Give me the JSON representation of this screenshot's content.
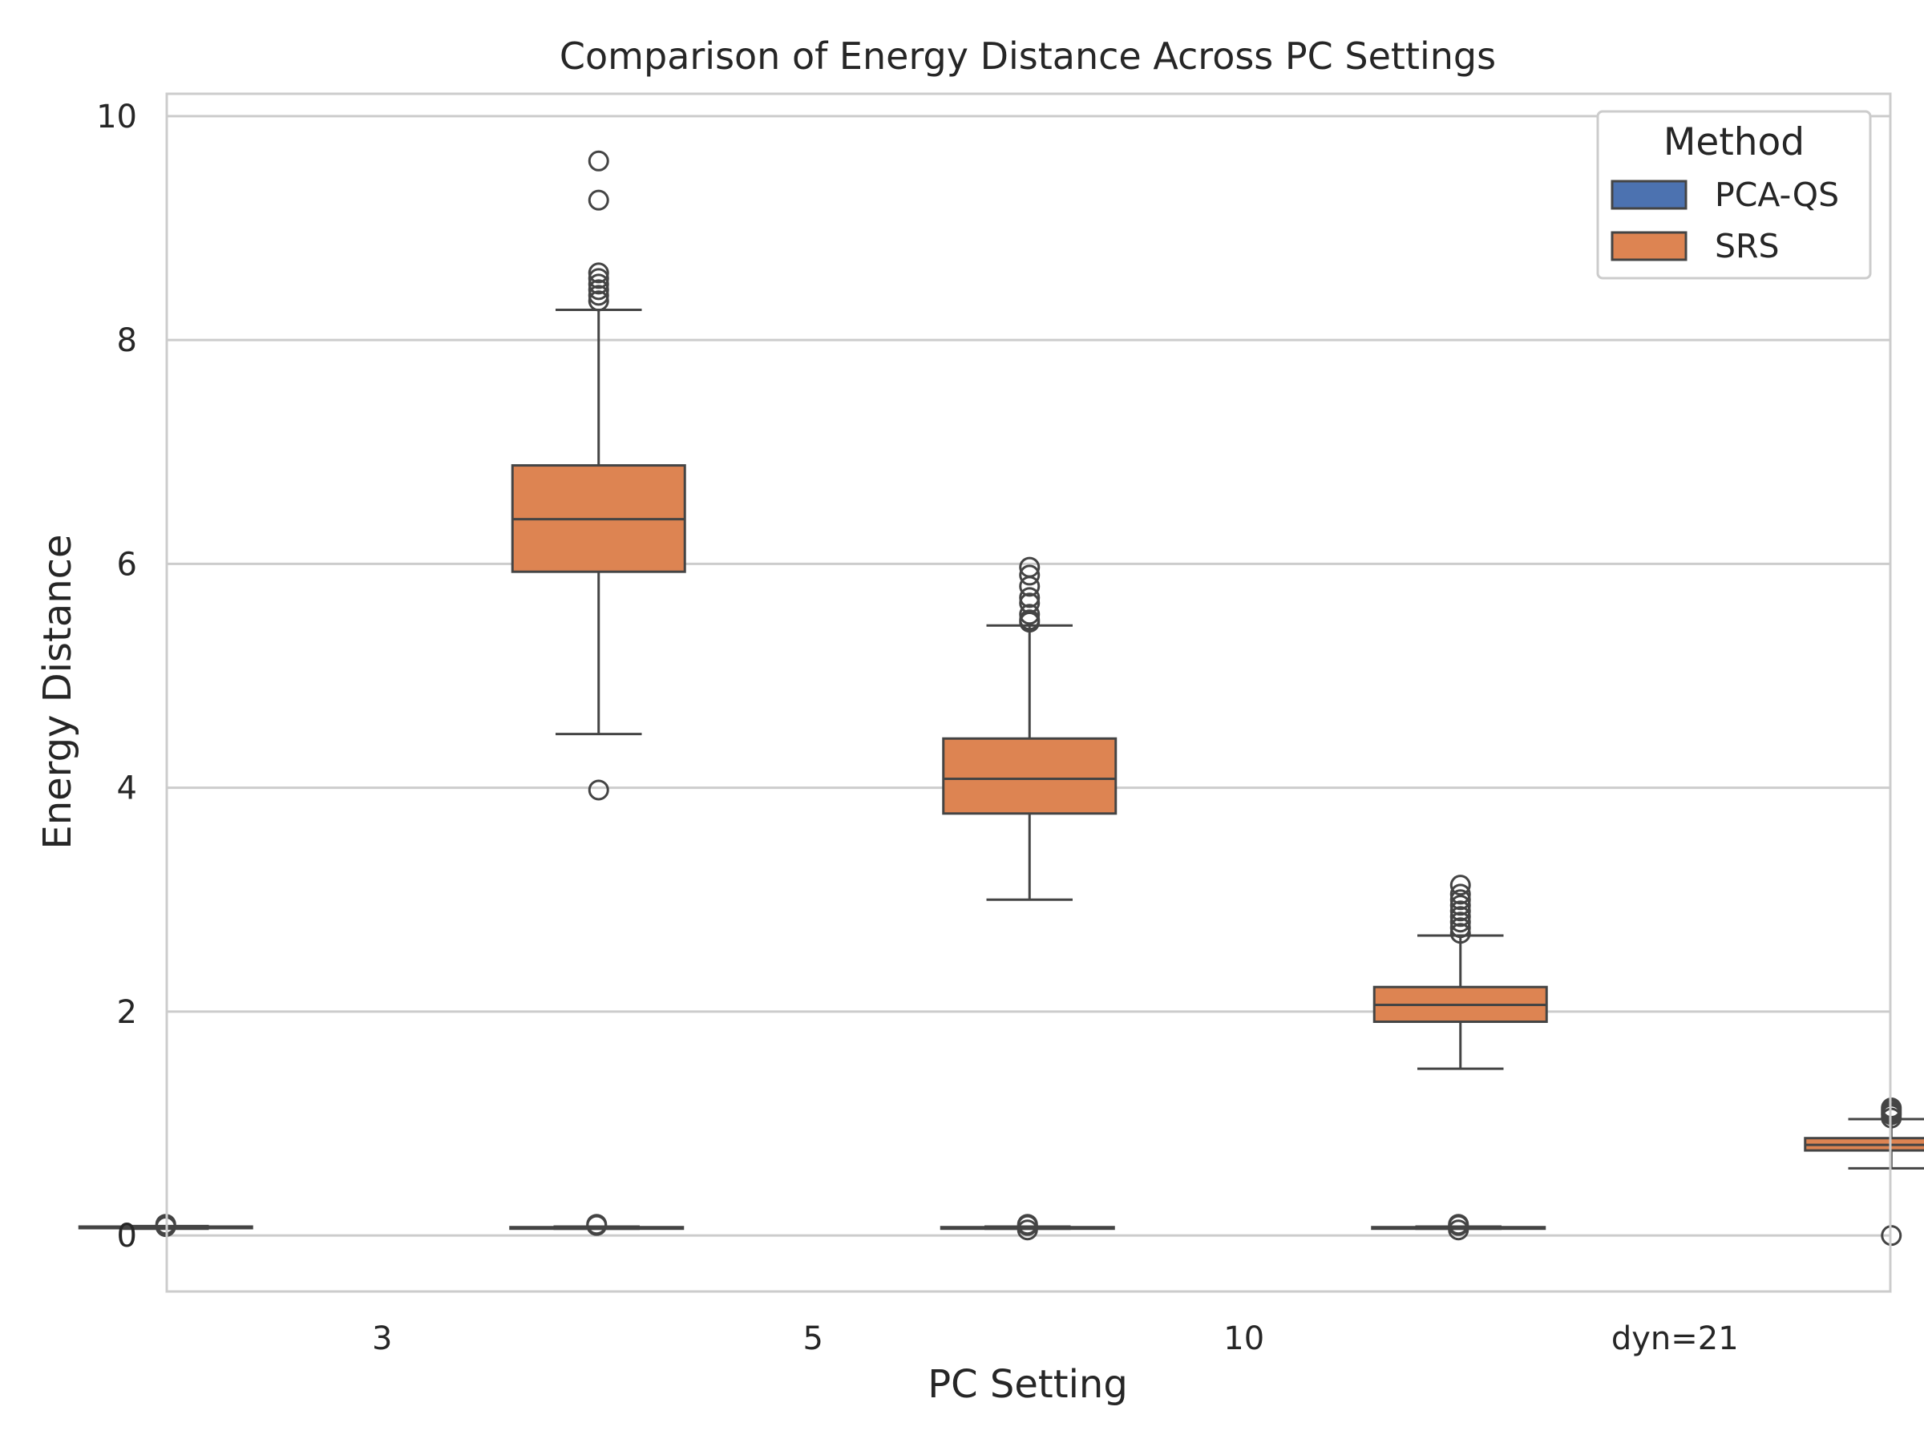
{
  "chart_data": {
    "type": "box",
    "title": "Comparison of Energy Distance Across PC Settings",
    "xlabel": "PC Setting",
    "ylabel": "Energy Distance",
    "categories": [
      "3",
      "5",
      "10",
      "dyn=21"
    ],
    "ylim": [
      -0.5,
      10.2
    ],
    "yticks": [
      0,
      2,
      4,
      6,
      8,
      10
    ],
    "grid": "horizontal",
    "legend": {
      "title": "Method",
      "placement": "top-right"
    },
    "series": [
      {
        "name": "PCA-QS",
        "color": "#4c72b0",
        "boxes": [
          {
            "category": "3",
            "whislo": 0.06,
            "q1": 0.07,
            "med": 0.075,
            "q3": 0.08,
            "whishi": 0.085,
            "outliers": [
              0.09,
              0.1,
              0.08
            ]
          },
          {
            "category": "5",
            "whislo": 0.06,
            "q1": 0.065,
            "med": 0.07,
            "q3": 0.075,
            "whishi": 0.08,
            "outliers": [
              0.09,
              0.1
            ]
          },
          {
            "category": "10",
            "whislo": 0.06,
            "q1": 0.065,
            "med": 0.07,
            "q3": 0.075,
            "whishi": 0.08,
            "outliers": [
              0.05,
              0.09,
              0.1
            ]
          },
          {
            "category": "dyn=21",
            "whislo": 0.06,
            "q1": 0.065,
            "med": 0.07,
            "q3": 0.075,
            "whishi": 0.08,
            "outliers": [
              0.05,
              0.09,
              0.1
            ]
          }
        ]
      },
      {
        "name": "SRS",
        "color": "#dd8452",
        "boxes": [
          {
            "category": "3",
            "whislo": 4.48,
            "q1": 5.93,
            "med": 6.4,
            "q3": 6.88,
            "whishi": 8.27,
            "outliers": [
              3.98,
              8.35,
              8.4,
              8.45,
              8.5,
              8.55,
              8.6,
              9.25,
              9.6
            ]
          },
          {
            "category": "5",
            "whislo": 3.0,
            "q1": 3.77,
            "med": 4.08,
            "q3": 4.44,
            "whishi": 5.45,
            "outliers": [
              5.48,
              5.5,
              5.55,
              5.65,
              5.7,
              5.8,
              5.9,
              5.97
            ]
          },
          {
            "category": "10",
            "whislo": 1.49,
            "q1": 1.91,
            "med": 2.06,
            "q3": 2.22,
            "whishi": 2.68,
            "outliers": [
              2.7,
              2.75,
              2.8,
              2.85,
              2.9,
              2.95,
              3.0,
              3.05,
              3.13
            ]
          },
          {
            "category": "dyn=21",
            "whislo": 0.6,
            "q1": 0.76,
            "med": 0.81,
            "q3": 0.87,
            "whishi": 1.04,
            "outliers": [
              0.0,
              1.05,
              1.08,
              1.1,
              1.12,
              1.14
            ]
          }
        ]
      }
    ]
  }
}
